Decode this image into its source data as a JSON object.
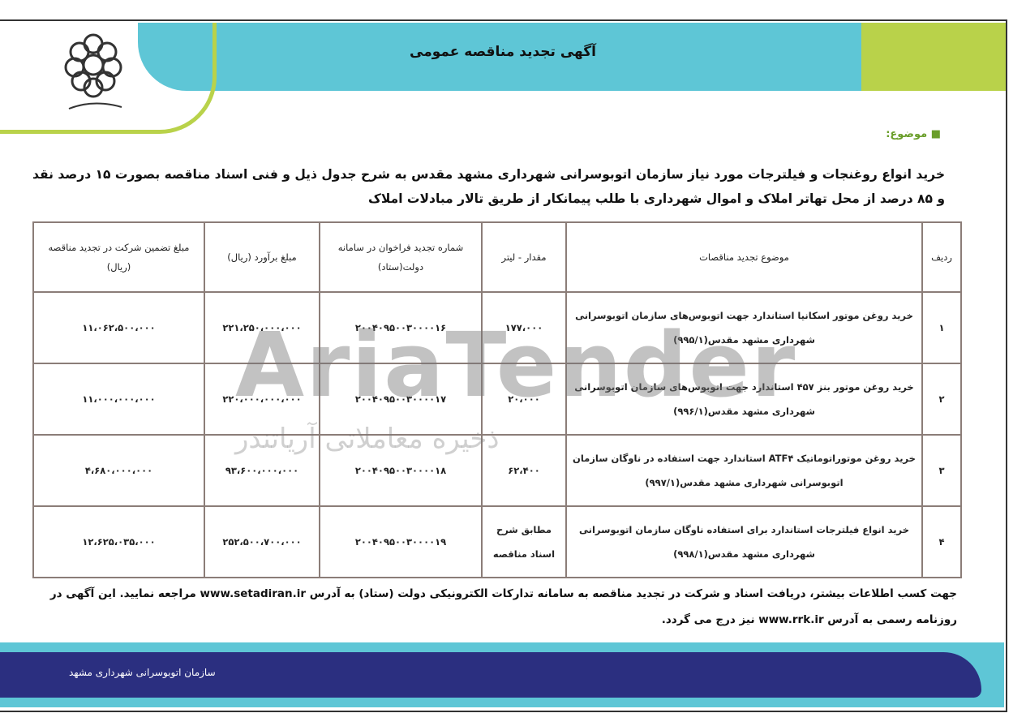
{
  "header": {
    "title": "آگهی تجدید مناقصه عمومی",
    "logo_text": "شهرداری مشهد",
    "accent_teal": "#5ec6d6",
    "accent_green": "#b9d24a"
  },
  "subject_label": "■ موضوع:",
  "intro": "خرید انواع روغنجات و فیلترجات مورد نیاز سازمان اتوبوسرانی شهرداری مشهد مقدس به شرح جدول ذیل و فنی اسناد مناقصه بصورت ۱۵ درصد نقد و ۸۵ درصد از محل تهاتر املاک و اموال شهرداری با طلب پیمانکار از طریق تالار مبادلات املاک",
  "table": {
    "headers": [
      "ردیف",
      "موضوع تجدید مناقصات",
      "مقدار - لیتر",
      "شماره تجدید فراخوان در سامانه دولت(ستاد)",
      "مبلغ برآورد (ریال)",
      "مبلغ تضمین شرکت در تجدید مناقصه (ریال)"
    ],
    "rows": [
      [
        "۱",
        "خرید روغن موتور اسکانیا استاندارد جهت اتوبوس‌های سازمان اتوبوسرانی شهرداری مشهد مقدس(۹۹۵/۱)",
        "۱۷۷،۰۰۰",
        "۲۰۰۴۰۹۵۰۰۳۰۰۰۰۱۶",
        "۲۲۱،۲۵۰،۰۰۰،۰۰۰",
        "۱۱،۰۶۲،۵۰۰،۰۰۰"
      ],
      [
        "۲",
        "خرید روغن موتور بنز ۴۵۷ استاندارد جهت اتوبوس‌های سازمان اتوبوسرانی شهرداری مشهد مقدس(۹۹۶/۱)",
        "۲۰،۰۰۰",
        "۲۰۰۴۰۹۵۰۰۳۰۰۰۰۱۷",
        "۲۲۰،۰۰۰،۰۰۰،۰۰۰",
        "۱۱،۰۰۰،۰۰۰،۰۰۰"
      ],
      [
        "۳",
        "خرید روغن موتوراتوماتیک ATF۴ استاندارد جهت استفاده در ناوگان سازمان اتوبوسرانی شهرداری مشهد مقدس(۹۹۷/۱)",
        "۶۲،۴۰۰",
        "۲۰۰۴۰۹۵۰۰۳۰۰۰۰۱۸",
        "۹۳،۶۰۰،۰۰۰،۰۰۰",
        "۴،۶۸۰،۰۰۰،۰۰۰"
      ],
      [
        "۴",
        "خرید انواع فیلترجات استاندارد برای استفاده ناوگان سازمان اتوبوسرانی شهرداری مشهد مقدس(۹۹۸/۱)",
        "مطابق شرح اسناد مناقصه",
        "۲۰۰۴۰۹۵۰۰۳۰۰۰۰۱۹",
        "۲۵۲،۵۰۰،۷۰۰،۰۰۰",
        "۱۲،۶۲۵،۰۳۵،۰۰۰"
      ]
    ]
  },
  "watermark": {
    "text": "AriaTender",
    "subtext": "ذخیره معاملاتی آریاتندر"
  },
  "footer": {
    "text": "جهت کسب اطلاعات بیشتر، دریافت اسناد و شرکت در تجدید مناقصه به سامانه تدارکات الکترونیکی دولت (ستاد) به آدرس www.setadiran.ir مراجعه نمایید. این آگهی در روزنامه رسمی به آدرس www.rrk.ir نیز درج می گردد.",
    "org": "سازمان اتوبوسرانی شهرداری مشهد",
    "navy": "#2b2f80"
  }
}
